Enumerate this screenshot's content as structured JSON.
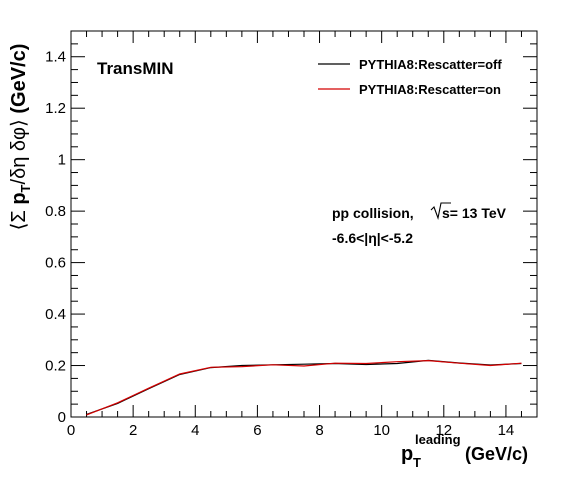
{
  "chart_data": {
    "type": "line",
    "ylabel": "⟨Σ p_T/δη δφ⟩ (GeV/c)",
    "xlabel": {
      "main": "p",
      "sub": "T",
      "sup": "leading",
      "unit": "(GeV/c)"
    },
    "xlim": [
      0,
      15
    ],
    "ylim": [
      0,
      1.5
    ],
    "x_ticks": [
      0,
      2,
      4,
      6,
      8,
      10,
      12,
      14
    ],
    "y_ticks": [
      0,
      0.2,
      0.4,
      0.6,
      0.8,
      1,
      1.2,
      1.4
    ],
    "x_tick_labels": [
      "0",
      "2",
      "4",
      "6",
      "8",
      "10",
      "12",
      "14"
    ],
    "y_tick_labels": [
      "0",
      "0.2",
      "0.4",
      "0.6",
      "0.8",
      "1",
      "1.2",
      "1.4"
    ],
    "grid": false,
    "legend_position": "top-right",
    "region_label": "TransMIN",
    "annotations": [
      "pp collision,",
      "s= 13 TeV",
      "-6.6<|η|<-5.2"
    ],
    "series": [
      {
        "name": "PYTHIA8:Rescatter=off",
        "color": "#000000",
        "x": [
          0.5,
          1.5,
          2.5,
          3.5,
          4.5,
          5.5,
          6.5,
          7.5,
          8.5,
          9.5,
          10.5,
          11.5,
          12.5,
          13.5,
          14.5
        ],
        "values": [
          0.01,
          0.053,
          0.11,
          0.165,
          0.192,
          0.2,
          0.203,
          0.205,
          0.208,
          0.204,
          0.208,
          0.22,
          0.21,
          0.202,
          0.208
        ]
      },
      {
        "name": "PYTHIA8:Rescatter=on",
        "color": "#d40000",
        "x": [
          0.5,
          1.5,
          2.5,
          3.5,
          4.5,
          5.5,
          6.5,
          7.5,
          8.5,
          9.5,
          10.5,
          11.5,
          12.5,
          13.5,
          14.5
        ],
        "values": [
          0.008,
          0.055,
          0.112,
          0.167,
          0.193,
          0.196,
          0.203,
          0.198,
          0.209,
          0.208,
          0.215,
          0.219,
          0.209,
          0.2,
          0.209
        ]
      }
    ]
  }
}
